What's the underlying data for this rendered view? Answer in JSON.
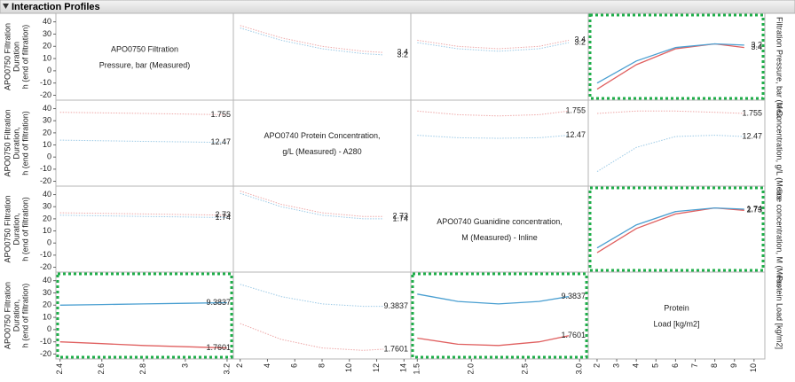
{
  "title": "Interaction Profiles",
  "row_labels": [
    [
      "APO0750 Filtration",
      "Duration",
      "h (end of filtration)"
    ],
    [
      "APO0750 Filtration",
      "Duration,",
      "h (end of filtration)"
    ],
    [
      "APO0750 Filtration",
      "Duration,",
      "h (end of filtration)"
    ],
    [
      "APO0750 Filtration",
      "Duration,",
      "h (end of filtration)"
    ]
  ],
  "factor_labels": [
    [
      "APO0750 Filtration",
      "Pressure, bar (Measured)"
    ],
    [
      "APO0740 Protein Concentration,",
      "g/L (Measured) - A280"
    ],
    [
      "APO0740 Guanidine concentration,",
      "M (Measured) - Inline"
    ],
    [
      "Protein",
      "Load [kg/m2]"
    ]
  ],
  "side_labels": [
    "Filtration Pressure, bar (Mea",
    "n Concentration, g/L (Meas",
    "line concentration, M (Meas",
    "Protein Load [kg/m2]"
  ],
  "y_axes": [
    {
      "ylim": [
        -24,
        47
      ],
      "yticks": [
        -20,
        -10,
        0,
        10,
        20,
        30,
        40
      ]
    },
    {
      "ylim": [
        -24,
        47
      ],
      "yticks": [
        -20,
        -10,
        0,
        10,
        20,
        30,
        40
      ]
    },
    {
      "ylim": [
        -24,
        47
      ],
      "yticks": [
        -20,
        -10,
        0,
        10,
        20,
        30,
        40
      ]
    },
    {
      "ylim": [
        -24,
        47
      ],
      "yticks": [
        -20,
        -10,
        0,
        10,
        20,
        30,
        40
      ]
    }
  ],
  "x_axes": [
    {
      "xlim": [
        2.38,
        3.23
      ],
      "xticks": [
        2.4,
        2.6,
        2.8,
        3,
        3.2
      ]
    },
    {
      "xlim": [
        1.5,
        14.5
      ],
      "xticks": [
        2,
        4,
        6,
        8,
        10,
        12,
        14
      ]
    },
    {
      "xlim": [
        1.44,
        3.08
      ],
      "xticks": [
        1.5,
        {
          "value": 2,
          "label": "2.0"
        },
        2.5,
        {
          "value": 3,
          "label": "3.0"
        }
      ]
    },
    {
      "xlim": [
        1.55,
        10.55
      ],
      "xticks": [
        2,
        3,
        4,
        5,
        6,
        7,
        8,
        9,
        10
      ]
    }
  ],
  "chart_data": [
    {
      "type": "line",
      "highlight": false,
      "x": [
        2,
        5,
        8,
        11,
        12.5
      ],
      "series": [
        {
          "name": "3.4",
          "color": "#e06060",
          "values": [
            37,
            27,
            20,
            16,
            15
          ]
        },
        {
          "name": "3.2",
          "color": "#4a9fd1",
          "values": [
            35,
            25,
            18,
            14,
            13
          ]
        }
      ]
    },
    {
      "type": "line",
      "highlight": false,
      "x": [
        1.5,
        1.875,
        2.25,
        2.625,
        2.9
      ],
      "series": [
        {
          "name": "3.4",
          "color": "#e06060",
          "values": [
            25,
            20,
            18,
            20,
            25
          ]
        },
        {
          "name": "3.2",
          "color": "#4a9fd1",
          "values": [
            23,
            18,
            16,
            18,
            23
          ]
        }
      ]
    },
    {
      "type": "line",
      "highlight": true,
      "x": [
        2,
        4,
        6,
        8,
        9.5
      ],
      "series": [
        {
          "name": "3.4",
          "color": "#e06060",
          "values": [
            -15,
            5,
            18,
            22,
            19
          ]
        },
        {
          "name": "3.2",
          "color": "#4a9fd1",
          "values": [
            -10,
            8,
            19,
            22,
            21
          ]
        }
      ]
    },
    {
      "type": "line",
      "highlight": false,
      "x": [
        2.4,
        2.6,
        2.8,
        3,
        3.2
      ],
      "series": [
        {
          "name": "1.755",
          "color": "#e06060",
          "values": [
            37,
            36.5,
            36,
            35.5,
            35
          ]
        },
        {
          "name": "12.47",
          "color": "#4a9fd1",
          "values": [
            14,
            13.5,
            13,
            12.5,
            12
          ]
        }
      ]
    },
    {
      "type": "line",
      "highlight": false,
      "x": [
        1.5,
        1.875,
        2.25,
        2.625,
        2.9
      ],
      "series": [
        {
          "name": "1.755",
          "color": "#e06060",
          "values": [
            38,
            35,
            34,
            35,
            38
          ]
        },
        {
          "name": "12.47",
          "color": "#4a9fd1",
          "values": [
            18,
            16,
            15.5,
            16,
            18
          ]
        }
      ]
    },
    {
      "type": "line",
      "highlight": false,
      "x": [
        2,
        4,
        6,
        8,
        9.5
      ],
      "series": [
        {
          "name": "1.755",
          "color": "#e06060",
          "values": [
            36,
            38,
            38,
            37,
            36
          ]
        },
        {
          "name": "12.47",
          "color": "#4a9fd1",
          "values": [
            -12,
            8,
            17,
            18,
            17
          ]
        }
      ]
    },
    {
      "type": "line",
      "highlight": false,
      "x": [
        2.4,
        2.6,
        2.8,
        3,
        3.2
      ],
      "series": [
        {
          "name": "2.73",
          "color": "#e06060",
          "values": [
            25,
            24.5,
            24,
            23.5,
            23
          ]
        },
        {
          "name": "1.74",
          "color": "#4a9fd1",
          "values": [
            23,
            22.5,
            22,
            21.5,
            21
          ]
        }
      ]
    },
    {
      "type": "line",
      "highlight": false,
      "x": [
        2,
        5,
        8,
        11,
        12.5
      ],
      "series": [
        {
          "name": "2.73",
          "color": "#e06060",
          "values": [
            43,
            32,
            25,
            22,
            22
          ]
        },
        {
          "name": "1.74",
          "color": "#4a9fd1",
          "values": [
            41,
            30,
            23,
            20,
            20
          ]
        }
      ]
    },
    {
      "type": "line",
      "highlight": true,
      "x": [
        2,
        4,
        6,
        8,
        9.5
      ],
      "series": [
        {
          "name": "2.73",
          "color": "#e06060",
          "values": [
            -8,
            12,
            24,
            29,
            27
          ]
        },
        {
          "name": "1.74",
          "color": "#4a9fd1",
          "values": [
            -4,
            15,
            26,
            29,
            28
          ]
        }
      ]
    },
    {
      "type": "line",
      "highlight": true,
      "x": [
        2.4,
        2.6,
        2.8,
        3,
        3.2
      ],
      "series": [
        {
          "name": "9.3837",
          "color": "#4a9fd1",
          "values": [
            20,
            20.5,
            21,
            21.5,
            22
          ]
        },
        {
          "name": "1.7601",
          "color": "#e06060",
          "values": [
            -10,
            -11.5,
            -13,
            -14,
            -15
          ]
        }
      ]
    },
    {
      "type": "line",
      "highlight": false,
      "x": [
        2,
        5,
        8,
        11,
        12.5
      ],
      "series": [
        {
          "name": "9.3837",
          "color": "#4a9fd1",
          "values": [
            37,
            27,
            21,
            19,
            19
          ]
        },
        {
          "name": "1.7601",
          "color": "#e06060",
          "values": [
            5,
            -8,
            -15,
            -17,
            -16
          ]
        }
      ]
    },
    {
      "type": "line",
      "highlight": true,
      "x": [
        1.5,
        1.875,
        2.25,
        2.625,
        2.9
      ],
      "series": [
        {
          "name": "9.3837",
          "color": "#4a9fd1",
          "values": [
            29,
            23,
            21,
            23,
            27
          ]
        },
        {
          "name": "1.7601",
          "color": "#e06060",
          "values": [
            -7,
            -12,
            -13,
            -10,
            -5
          ]
        }
      ]
    }
  ]
}
